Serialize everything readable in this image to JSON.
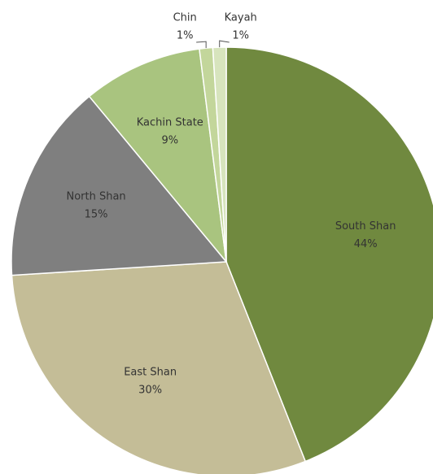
{
  "chart_data": {
    "type": "pie",
    "categories": [
      "South Shan",
      "East Shan",
      "North Shan",
      "Kachin State",
      "Chin",
      "Kayah"
    ],
    "values": [
      44,
      30,
      15,
      9,
      1,
      1
    ],
    "value_labels": [
      "44%",
      "30%",
      "15%",
      "9%",
      "1%",
      "1%"
    ],
    "colors": [
      "#70893f",
      "#c4bd97",
      "#7f7f7f",
      "#a9c47f",
      "#c3d69b",
      "#d7e4bd"
    ]
  }
}
